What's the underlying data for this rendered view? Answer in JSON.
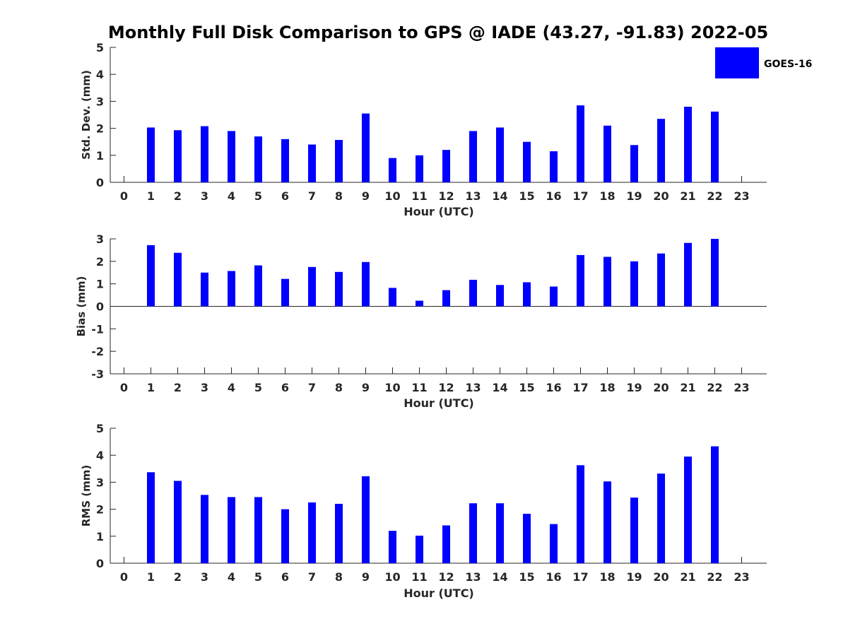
{
  "title": "Monthly Full Disk Comparison to GPS @ IADE (43.27, -91.83) 2022-05",
  "legend": {
    "label": "GOES-16",
    "color": "#0000ff"
  },
  "chart_data": [
    {
      "type": "bar",
      "xlabel": "Hour (UTC)",
      "ylabel": "Std. Dev. (mm)",
      "categories": [
        "0",
        "1",
        "2",
        "3",
        "4",
        "5",
        "6",
        "7",
        "8",
        "9",
        "10",
        "11",
        "12",
        "13",
        "14",
        "15",
        "16",
        "17",
        "18",
        "19",
        "20",
        "21",
        "22",
        "23"
      ],
      "yticks": [
        "0",
        "1",
        "2",
        "3",
        "4",
        "5"
      ],
      "ylim": [
        0,
        5
      ],
      "series": [
        {
          "name": "GOES-16",
          "color": "#0000ff",
          "values": [
            null,
            2.03,
            1.93,
            2.08,
            1.9,
            1.7,
            1.6,
            1.4,
            1.57,
            2.55,
            0.9,
            1.0,
            1.2,
            1.9,
            2.03,
            1.5,
            1.15,
            2.85,
            2.1,
            1.38,
            2.35,
            2.8,
            2.62,
            null
          ]
        }
      ]
    },
    {
      "type": "bar",
      "xlabel": "Hour (UTC)",
      "ylabel": "Bias (mm)",
      "categories": [
        "0",
        "1",
        "2",
        "3",
        "4",
        "5",
        "6",
        "7",
        "8",
        "9",
        "10",
        "11",
        "12",
        "13",
        "14",
        "15",
        "16",
        "17",
        "18",
        "19",
        "20",
        "21",
        "22",
        "23"
      ],
      "yticks": [
        "-3",
        "-2",
        "-1",
        "0",
        "1",
        "2",
        "3"
      ],
      "ylim": [
        -3,
        3
      ],
      "series": [
        {
          "name": "GOES-16",
          "color": "#0000ff",
          "values": [
            null,
            2.72,
            2.38,
            1.5,
            1.57,
            1.82,
            1.22,
            1.75,
            1.53,
            1.97,
            0.82,
            0.25,
            0.72,
            1.18,
            0.95,
            1.07,
            0.88,
            2.28,
            2.2,
            2.0,
            2.35,
            2.82,
            3.0,
            null
          ]
        }
      ]
    },
    {
      "type": "bar",
      "xlabel": "Hour (UTC)",
      "ylabel": "RMS (mm)",
      "categories": [
        "0",
        "1",
        "2",
        "3",
        "4",
        "5",
        "6",
        "7",
        "8",
        "9",
        "10",
        "11",
        "12",
        "13",
        "14",
        "15",
        "16",
        "17",
        "18",
        "19",
        "20",
        "21",
        "22",
        "23"
      ],
      "yticks": [
        "0",
        "1",
        "2",
        "3",
        "4",
        "5"
      ],
      "ylim": [
        0,
        5
      ],
      "series": [
        {
          "name": "GOES-16",
          "color": "#0000ff",
          "values": [
            null,
            3.37,
            3.05,
            2.53,
            2.45,
            2.45,
            2.0,
            2.25,
            2.2,
            3.22,
            1.2,
            1.02,
            1.4,
            2.22,
            2.22,
            1.83,
            1.45,
            3.63,
            3.03,
            2.43,
            3.32,
            3.95,
            4.33,
            null
          ]
        }
      ]
    }
  ]
}
